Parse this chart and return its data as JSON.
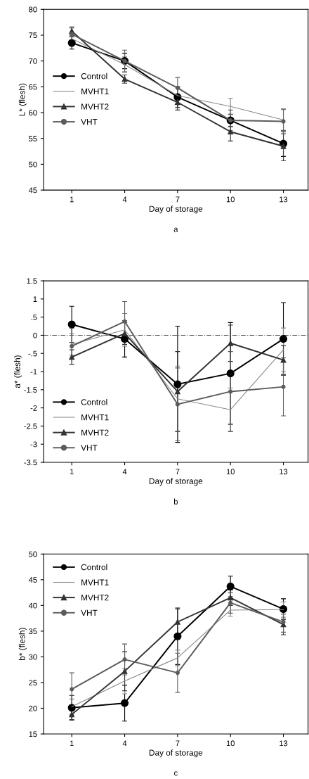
{
  "chart_data": [
    {
      "type": "line",
      "xlabel": "Day of storage",
      "ylabel": "L* (flesh)",
      "annotations": [
        "a"
      ],
      "x": [
        1,
        4,
        7,
        10,
        13
      ],
      "xlim": [
        -0.6,
        14.4
      ],
      "xticks": [
        1,
        4,
        7,
        10,
        13
      ],
      "ylim": [
        45,
        80
      ],
      "yticks": [
        45,
        50,
        55,
        60,
        65,
        70,
        75,
        80
      ],
      "grid": false,
      "legend": "left",
      "series": [
        {
          "name": "Control",
          "color": "#000000",
          "marker": "circle",
          "values": [
            73.5,
            70.0,
            63.0,
            58.5,
            54.0
          ],
          "errors": [
            1.2,
            1.5,
            2.0,
            1.2,
            2.5
          ]
        },
        {
          "name": "MVHT1",
          "color": "#8a8a8a",
          "marker": "none",
          "values": [
            74.3,
            69.3,
            63.3,
            61.2,
            58.6
          ],
          "errors": [
            1.0,
            1.5,
            1.5,
            1.6,
            2.0
          ]
        },
        {
          "name": "MVHT2",
          "color": "#333333",
          "marker": "triangle",
          "values": [
            75.8,
            66.5,
            62.0,
            56.3,
            53.5
          ],
          "errors": [
            0.8,
            0.8,
            1.5,
            1.8,
            2.8
          ]
        },
        {
          "name": "VHT",
          "color": "#5c5c5c",
          "marker": "circle",
          "values": [
            75.2,
            70.0,
            64.8,
            58.5,
            58.3
          ],
          "errors": [
            1.2,
            2.1,
            2.0,
            2.0,
            2.4
          ]
        }
      ]
    },
    {
      "type": "line",
      "xlabel": "Day of storage",
      "ylabel": "a* (flesh)",
      "annotations": [
        "b"
      ],
      "x": [
        1,
        4,
        7,
        10,
        13
      ],
      "xlim": [
        -0.6,
        14.4
      ],
      "xticks": [
        1,
        4,
        7,
        10,
        13
      ],
      "ylim": [
        -3.5,
        1.5
      ],
      "yticks": [
        {
          "value": -3.5,
          "label": "-3.5"
        },
        {
          "value": -3,
          "label": "-3"
        },
        {
          "value": -2.5,
          "label": "-2.5"
        },
        {
          "value": -2,
          "label": "-2"
        },
        {
          "value": -1.5,
          "label": "-1.5"
        },
        {
          "value": -1,
          "label": "-1"
        },
        {
          "value": -0.5,
          "label": "-.5"
        },
        {
          "value": 0,
          "label": "0"
        },
        {
          "value": 0.5,
          "label": ".5"
        },
        {
          "value": 1,
          "label": "1"
        },
        {
          "value": 1.5,
          "label": "1.5"
        }
      ],
      "grid": false,
      "legend": "lower left",
      "ref_lines": [
        {
          "axis": "y",
          "value": 0,
          "color": "#555555",
          "line_style": "dashed"
        }
      ],
      "series": [
        {
          "name": "Control",
          "color": "#000000",
          "marker": "circle",
          "values": [
            0.3,
            -0.1,
            -1.35,
            -1.05,
            -0.1
          ],
          "errors": [
            0.5,
            0.5,
            1.6,
            1.4,
            1.0
          ]
        },
        {
          "name": "MVHT1",
          "color": "#8a8a8a",
          "marker": "none",
          "values": [
            -0.25,
            0.15,
            -1.75,
            -2.05,
            -0.4
          ],
          "errors": [
            0.3,
            0.45,
            0.9,
            0.6,
            0.6
          ]
        },
        {
          "name": "MVHT2",
          "color": "#333333",
          "marker": "triangle",
          "values": [
            -0.6,
            0.05,
            -1.55,
            -0.22,
            -0.68
          ],
          "errors": [
            0.2,
            0.3,
            1.1,
            0.5,
            0.4
          ]
        },
        {
          "name": "VHT",
          "color": "#5c5c5c",
          "marker": "circle",
          "values": [
            -0.3,
            0.38,
            -1.9,
            -1.55,
            -1.42
          ],
          "errors": [
            0.5,
            0.55,
            1.0,
            1.1,
            0.8
          ]
        }
      ]
    },
    {
      "type": "line",
      "xlabel": "Day of storage",
      "ylabel": "b* (flesh)",
      "annotations": [
        "c"
      ],
      "x": [
        1,
        4,
        7,
        10,
        13
      ],
      "xlim": [
        -0.6,
        14.4
      ],
      "xticks": [
        1,
        4,
        7,
        10,
        13
      ],
      "ylim": [
        15,
        50
      ],
      "yticks": [
        15,
        20,
        25,
        30,
        35,
        40,
        45,
        50
      ],
      "grid": false,
      "legend": "upper left",
      "series": [
        {
          "name": "Control",
          "color": "#000000",
          "marker": "circle",
          "values": [
            20.1,
            21.0,
            34.0,
            43.7,
            39.3
          ],
          "errors": [
            2.4,
            3.5,
            5.5,
            2.0,
            2.0
          ]
        },
        {
          "name": "MVHT1",
          "color": "#8a8a8a",
          "marker": "none",
          "values": [
            20.3,
            25.3,
            29.8,
            39.1,
            39.2
          ],
          "errors": [
            1.5,
            2.5,
            1.5,
            1.2,
            1.5
          ]
        },
        {
          "name": "MVHT2",
          "color": "#333333",
          "marker": "triangle",
          "values": [
            18.8,
            27.2,
            36.8,
            41.5,
            36.3
          ],
          "errors": [
            1.0,
            3.8,
            2.5,
            1.5,
            2.0
          ]
        },
        {
          "name": "VHT",
          "color": "#5c5c5c",
          "marker": "circle",
          "values": [
            23.7,
            29.5,
            26.9,
            40.5,
            36.8
          ],
          "errors": [
            3.2,
            3.0,
            3.8,
            2.0,
            2.0
          ]
        }
      ]
    }
  ]
}
